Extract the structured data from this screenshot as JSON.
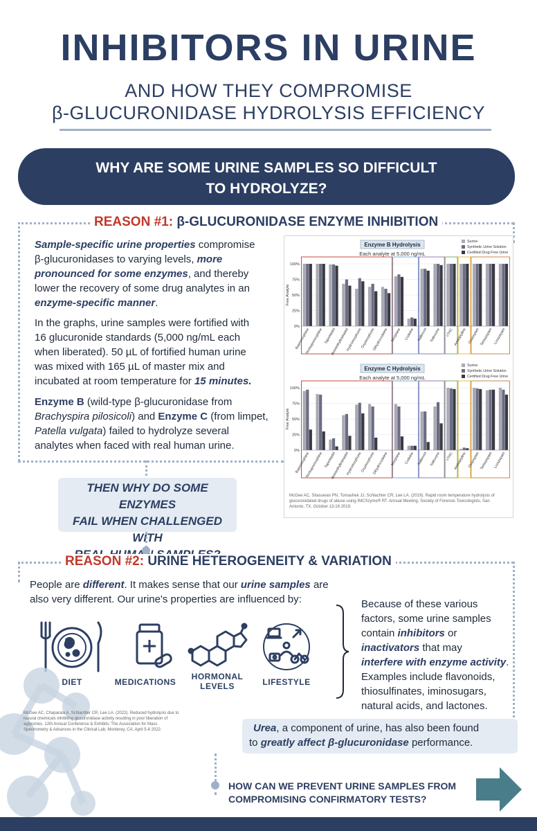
{
  "header": {
    "title": "INHIBITORS IN URINE",
    "subtitle_line1": "AND HOW THEY COMPROMISE",
    "subtitle_line2": "β-GLUCURONIDASE HYDROLYSIS EFFICIENCY"
  },
  "banner": {
    "line1": "WHY ARE SOME URINE SAMPLES SO DIFFICULT",
    "line2": "TO HYDROLYZE?"
  },
  "reason1": {
    "label": "REASON #1:",
    "heading": "β-GLUCURONIDASE ENZYME INHIBITION",
    "p1": {
      "a": "Sample-specific urine properties",
      "b": " compromise",
      "c": "β-glucuronidases to varying levels, ",
      "d": "more",
      "e": "pronounced for some enzymes",
      "f": ", and thereby",
      "g": "lower the recovery of some drug analytes in an",
      "h": "enzyme-specific manner",
      "i": "."
    },
    "p2": {
      "l1": "In the graphs, urine samples were fortified with",
      "l2": "16 glucuronide standards (5,000 ng/mL each",
      "l3": "when liberated). 50 µL of fortified human urine",
      "l4": "was mixed with 165 µL of master mix and",
      "l5a": "incubated at room temperature for ",
      "l5b": "15 minutes."
    },
    "p3": {
      "a": "Enzyme B",
      "b": " (wild-type β-glucuronidase from",
      "c": "Brachyspira pilosicoli",
      "d": ") and ",
      "e": "Enzyme C",
      "f": " (from limpet,",
      "g": "Patella vulgata",
      "h": ") failed to hydrolyze several",
      "i": "analytes when faced with real human urine."
    }
  },
  "callout1": {
    "l1": "THEN WHY DO SOME ENZYMES",
    "l2": "FAIL WHEN CHALLENGED WITH",
    "l3": "REAL HUMAN SAMPLES?"
  },
  "chart_data": [
    {
      "type": "bar",
      "title": "Enzyme B Hydrolysis",
      "subtitle": "Each analyte at 5,000 ng/mL",
      "ylabel": "Free Analyte",
      "ylim": [
        0,
        100
      ],
      "yticks": [
        "0%",
        "25%",
        "50%",
        "75%",
        "100%"
      ],
      "categories": [
        "Buprenorphine",
        "Norbuprenorphine",
        "Tapentadol",
        "O-desmethyltramadol",
        "Hydromorphone",
        "Oxymorphone",
        "Dihydrocodeine",
        "Morphine",
        "Codeine",
        "Naltrexol",
        "Naloxone",
        "cTHC",
        "Amitriptyline",
        "Oxazepam",
        "Temazepam",
        "Lorazepam"
      ],
      "series": [
        {
          "name": "Surine",
          "values": [
            100,
            100,
            99,
            68,
            60,
            63,
            63,
            80,
            12,
            92,
            100,
            100,
            100,
            100,
            100,
            100
          ]
        },
        {
          "name": "Synthetic Urine Solution",
          "values": [
            100,
            100,
            99,
            75,
            77,
            68,
            60,
            83,
            14,
            92,
            100,
            100,
            100,
            100,
            100,
            100
          ]
        },
        {
          "name": "Certified Drug Free Urine",
          "values": [
            100,
            100,
            97,
            65,
            72,
            56,
            53,
            79,
            12,
            89,
            98,
            100,
            100,
            100,
            100,
            100
          ]
        }
      ],
      "legend_position": "top-right"
    },
    {
      "type": "bar",
      "title": "Enzyme C Hydrolysis",
      "subtitle": "Each analyte at 5,000 ng/mL",
      "ylabel": "Free Analyte",
      "ylim": [
        0,
        100
      ],
      "yticks": [
        "0%",
        "25%",
        "50%",
        "75%",
        "100%"
      ],
      "categories": [
        "Buprenorphine",
        "Norbuprenorphine",
        "Tapentadol",
        "O-desmethyltramadol",
        "Hydromorphone",
        "Oxymorphone",
        "Dihydrocodeine",
        "Morphine",
        "Codeine",
        "Naltrexol",
        "Naloxone",
        "cTHC",
        "Amitriptyline",
        "Oxazepam",
        "Temazepam",
        "Lorazepam"
      ],
      "series": [
        {
          "name": "Surine",
          "values": [
            95,
            90,
            17,
            56,
            73,
            74,
            0,
            74,
            7,
            62,
            70,
            100,
            2,
            100,
            96,
            100
          ]
        },
        {
          "name": "Synthetic Urine Solution",
          "values": [
            97,
            89,
            19,
            58,
            76,
            70,
            0,
            70,
            7,
            62,
            77,
            99,
            4,
            99,
            97,
            97
          ]
        },
        {
          "name": "Certified Drug Free Urine",
          "values": [
            33,
            30,
            6,
            23,
            59,
            20,
            0,
            22,
            7,
            13,
            43,
            98,
            3,
            98,
            97,
            89
          ]
        }
      ],
      "legend_position": "top-right"
    }
  ],
  "chart_ref": {
    "l1": "McGee AC, Sitasuwan PN, Tomashek JJ, Schlachter CR, Lee LA. (2019). Rapid room temperature hydrolysis of",
    "l2": "glucuronidated drugs of abuse using IMCSzyme® RT. Annual Meeting, Society of Forensic Toxicologists, San",
    "l3": "Antonio, TX. October 13-18 2019."
  },
  "reason2": {
    "label": "REASON #2:",
    "heading": "URINE HETEROGENEITY & VARIATION",
    "p1": {
      "a": "People are ",
      "b": "different",
      "c": ". It makes sense that our ",
      "d": "urine samples",
      "e": " are",
      "f": "also very different. Our urine's properties are influenced by:"
    },
    "icons": [
      {
        "label": "DIET"
      },
      {
        "label": "MEDICATIONS"
      },
      {
        "label": "HORMONAL"
      },
      {
        "label": "LEVELS"
      },
      {
        "label": "LIFESTYLE"
      }
    ],
    "side": {
      "l1": "Because of these various",
      "l2": "factors, some urine samples",
      "l3a": "contain ",
      "l3b": "inhibitors",
      "l3c": " or",
      "l4a": "inactivators",
      "l4b": " that may",
      "l5a": "interfere with enzyme activity",
      "l5b": ".",
      "l6": "Examples include flavonoids,",
      "l7": "thiosulfinates, iminosugars,",
      "l8": "natural acids, and lactones."
    },
    "ref": {
      "l1": "McGee AC, Chaparala A, Schlachter CR, Lee LA. (2022). Reduced hydrolysis due to",
      "l2": "natural chemicals inhibiting glucuronidase activity resulting in poor liberation of",
      "l3": "aglycones. 12th Annual Conference & Exhibits: The Association for Mass",
      "l4": "Spectrometry & Advances in the Clinical Lab, Monterey, CA. April 5-8 2022."
    },
    "urea": {
      "a": "Urea",
      "b": ", a component of urine, has also been found",
      "c": "to ",
      "d": "greatly affect β-glucuronidase",
      "e": " performance."
    }
  },
  "next": {
    "l1": "HOW CAN WE PREVENT URINE SAMPLES FROM",
    "l2": "COMPROMISING CONFIRMATORY TESTS?"
  },
  "colors": {
    "navy": "#2c3e62",
    "red": "#c0392b",
    "teal": "#4a7d8a",
    "series": [
      "#a9a9b4",
      "#6b6e82",
      "#3a3a44"
    ]
  }
}
